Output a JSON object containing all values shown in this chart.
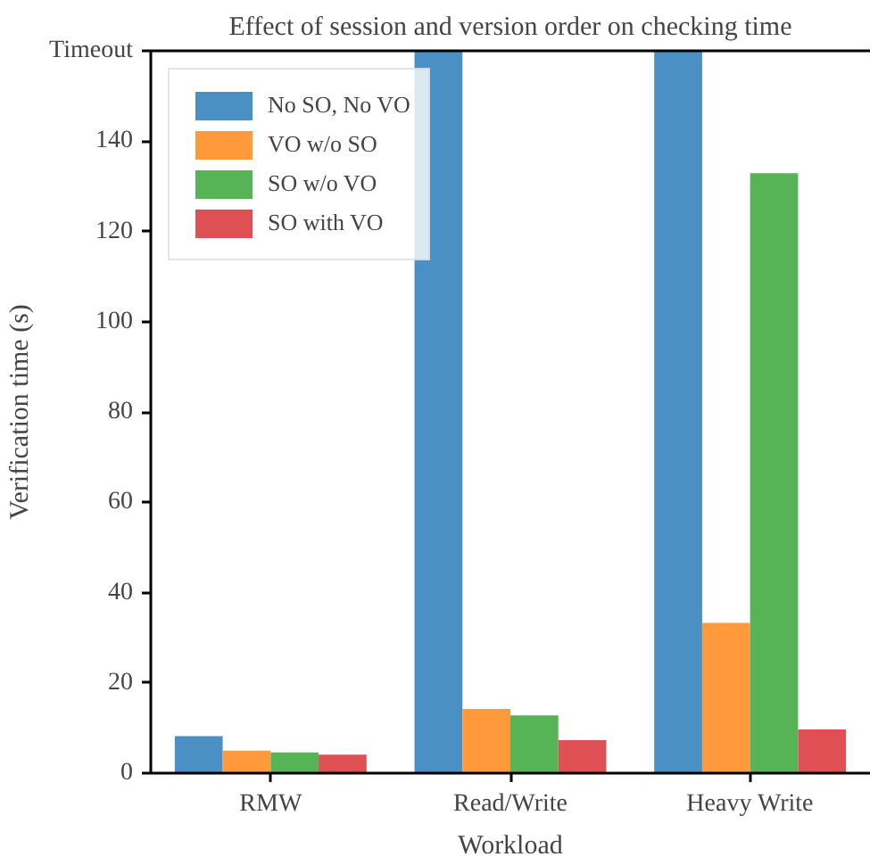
{
  "chart_data": {
    "type": "bar",
    "title": "Effect of session and version order on checking time",
    "xlabel": "Workload",
    "ylabel": "Verification time (s)",
    "categories": [
      "RMW",
      "Read/Write",
      "Heavy Write"
    ],
    "series": [
      {
        "name": "No SO, No VO",
        "color": "#4a90c4",
        "values": [
          8.2,
          160,
          160
        ]
      },
      {
        "name": "VO w/o SO",
        "color": "#ff9a3c",
        "values": [
          5.0,
          14.2,
          33.3
        ]
      },
      {
        "name": "SO w/o VO",
        "color": "#56b356",
        "values": [
          4.6,
          12.8,
          132.9
        ]
      },
      {
        "name": "SO with VO",
        "color": "#df5055",
        "values": [
          4.1,
          7.3,
          9.7
        ]
      }
    ],
    "ylim": [
      0,
      160
    ],
    "yticks": [
      0,
      20,
      40,
      60,
      80,
      100,
      120,
      140,
      {
        "value": 160,
        "label": "Timeout"
      }
    ],
    "grid": false,
    "legend": "top left"
  }
}
